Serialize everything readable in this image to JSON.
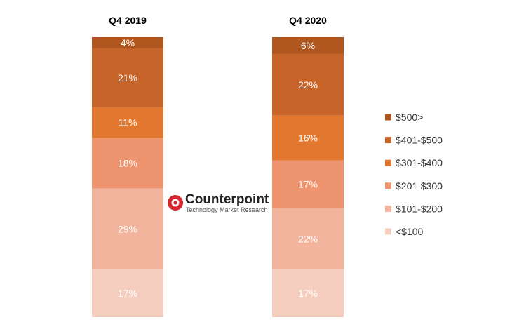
{
  "chart_data": {
    "type": "bar",
    "stacked": true,
    "normalized_percent": true,
    "categories": [
      "Q4 2019",
      "Q4 2020"
    ],
    "series": [
      {
        "name": "<$100",
        "values": [
          17,
          17
        ],
        "color": "#F4CDBE"
      },
      {
        "name": "$101-$200",
        "values": [
          29,
          22
        ],
        "color": "#F2B49C"
      },
      {
        "name": "$201-$300",
        "values": [
          18,
          17
        ],
        "color": "#EE9570"
      },
      {
        "name": "$301-$400",
        "values": [
          11,
          16
        ],
        "color": "#E2782F"
      },
      {
        "name": "$401-$500",
        "values": [
          21,
          22
        ],
        "color": "#C7642A"
      },
      {
        "name": "$500>",
        "values": [
          4,
          6
        ],
        "color": "#B0561F"
      }
    ],
    "data_labels": [
      [
        "17%",
        "29%",
        "18%",
        "11%",
        "21%",
        "4%"
      ],
      [
        "17%",
        "22%",
        "17%",
        "16%",
        "22%",
        "6%"
      ]
    ],
    "legend_position": "right",
    "grid": false
  },
  "logo": {
    "name": "Counterpoint",
    "tagline": "Technology Market Research",
    "icon": "counterpoint-logo-icon",
    "color": "#D7262E"
  }
}
